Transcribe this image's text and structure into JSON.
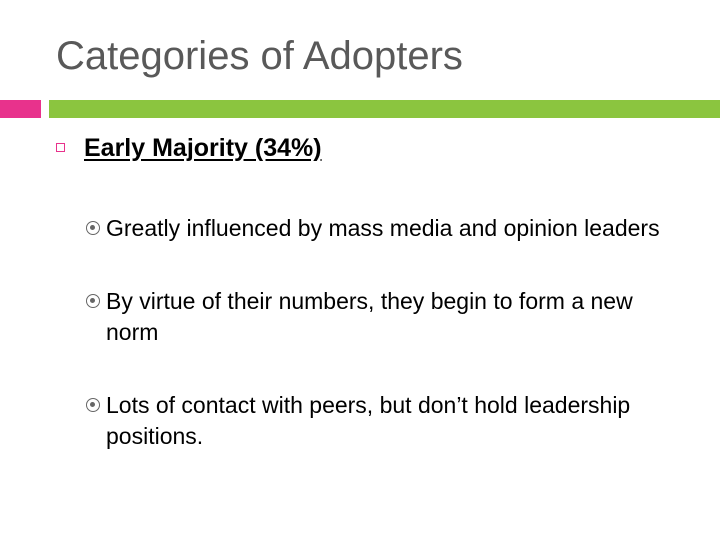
{
  "title": "Categories of Adopters",
  "colors": {
    "accent_pink": "#e8328c",
    "accent_green": "#8bc53f",
    "title_gray": "#595959"
  },
  "section": {
    "heading": "Early Majority (34%)",
    "bullets": [
      "Greatly influenced by mass media and opinion leaders",
      "By virtue of their numbers, they begin to form a new norm",
      "Lots of contact with peers, but don’t hold leadership positions."
    ]
  }
}
